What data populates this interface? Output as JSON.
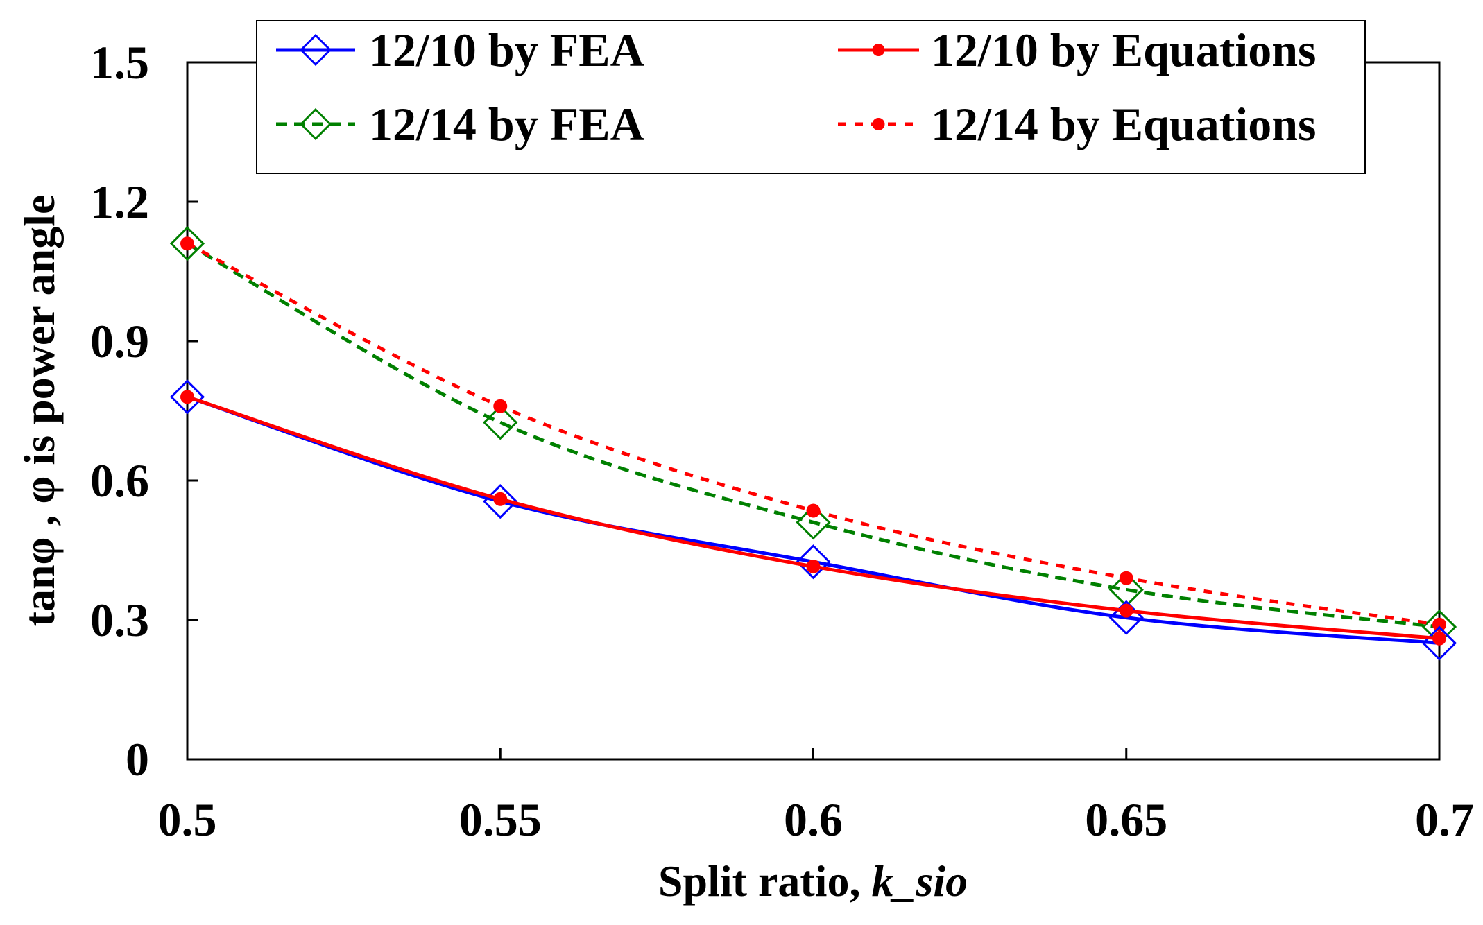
{
  "chart_data": {
    "type": "line",
    "title": "",
    "xlabel": "Split ratio, ",
    "xlabel_italic": "k_sio",
    "ylabel": "tanφ , φ is power angle",
    "x": [
      0.5,
      0.55,
      0.6,
      0.65,
      0.7
    ],
    "x_tick_labels": [
      "0.5",
      "0.55",
      "0.6",
      "0.65",
      "0.7"
    ],
    "y_ticks": [
      0,
      0.3,
      0.6,
      0.9,
      1.2,
      1.5
    ],
    "y_tick_labels": [
      "0",
      "0.3",
      "0.6",
      "0.9",
      "1.2",
      "1.5"
    ],
    "xlim": [
      0.5,
      0.7
    ],
    "ylim": [
      0,
      1.5
    ],
    "grid": false,
    "legend_position": "top",
    "series": [
      {
        "name": "12/10 by FEA",
        "values": [
          0.78,
          0.555,
          0.425,
          0.305,
          0.25
        ],
        "color": "#0000ff",
        "line": "solid",
        "marker": "diamond-open"
      },
      {
        "name": "12/10 by Equations",
        "values": [
          0.78,
          0.56,
          0.415,
          0.32,
          0.26
        ],
        "color": "#ff0000",
        "line": "solid",
        "marker": "dot"
      },
      {
        "name": "12/14 by FEA",
        "values": [
          1.11,
          0.725,
          0.51,
          0.365,
          0.285
        ],
        "color": "#008000",
        "line": "dashed",
        "marker": "diamond-open"
      },
      {
        "name": "12/14 by Equations",
        "values": [
          1.11,
          0.76,
          0.535,
          0.39,
          0.29
        ],
        "color": "#ff0000",
        "line": "dotted",
        "marker": "dot"
      }
    ]
  }
}
